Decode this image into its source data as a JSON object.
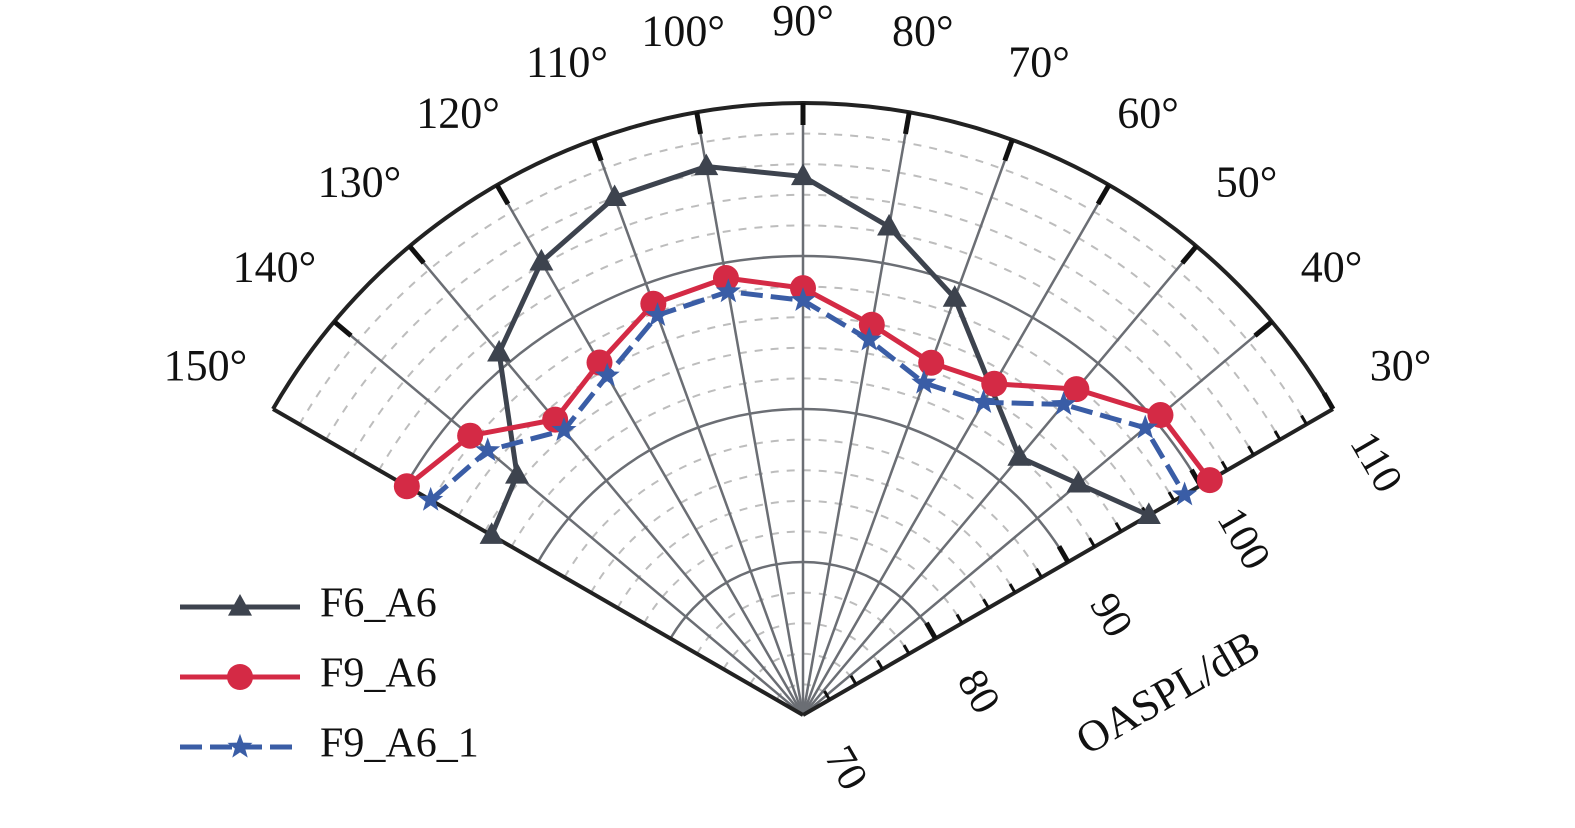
{
  "chart_data": {
    "type": "polar-line",
    "title": "",
    "radial_label": "OASPL/dB",
    "radial_range": [
      70,
      110
    ],
    "radial_ticks": [
      "70",
      "80",
      "90",
      "100",
      "110"
    ],
    "radial_tick_values": [
      70,
      80,
      90,
      100,
      110
    ],
    "angle_range_deg": [
      30,
      150
    ],
    "angles": [
      150,
      140,
      130,
      120,
      110,
      100,
      90,
      80,
      70,
      60,
      50,
      40,
      30
    ],
    "angle_tick_labels": [
      "150°",
      "140°",
      "130°",
      "120°",
      "110°",
      "100°",
      "90°",
      "80°",
      "70°",
      "60°",
      "50°",
      "40°",
      "30°"
    ],
    "grid": true,
    "legend_position": "bottom-left",
    "series": [
      {
        "name": "F6_A6",
        "color": "#3d434e",
        "marker": "triangle",
        "dash": "solid",
        "values": [
          93.5,
          94.4,
          100.9,
          104.2,
          106.0,
          106.4,
          105.2,
          102.4,
          99.0,
          null,
          92.0,
          93.5,
          96.1
        ]
      },
      {
        "name": "F9_A6",
        "color": "#d42a45",
        "marker": "circle",
        "dash": "solid",
        "values": [
          99.9,
          98.4,
          95.2,
          96.6,
          98.6,
          99.0,
          97.9,
          95.9,
          94.5,
          95.0,
          97.8,
          100.5,
          100.7
        ]
      },
      {
        "name": "F9_A6_1",
        "color": "#3a5da6",
        "marker": "star",
        "dash": "dashed",
        "values": [
          98.1,
          96.9,
          94.3,
          95.6,
          97.8,
          98.1,
          97.1,
          94.9,
          93.1,
          93.6,
          96.5,
          99.2,
          98.8
        ]
      }
    ]
  }
}
